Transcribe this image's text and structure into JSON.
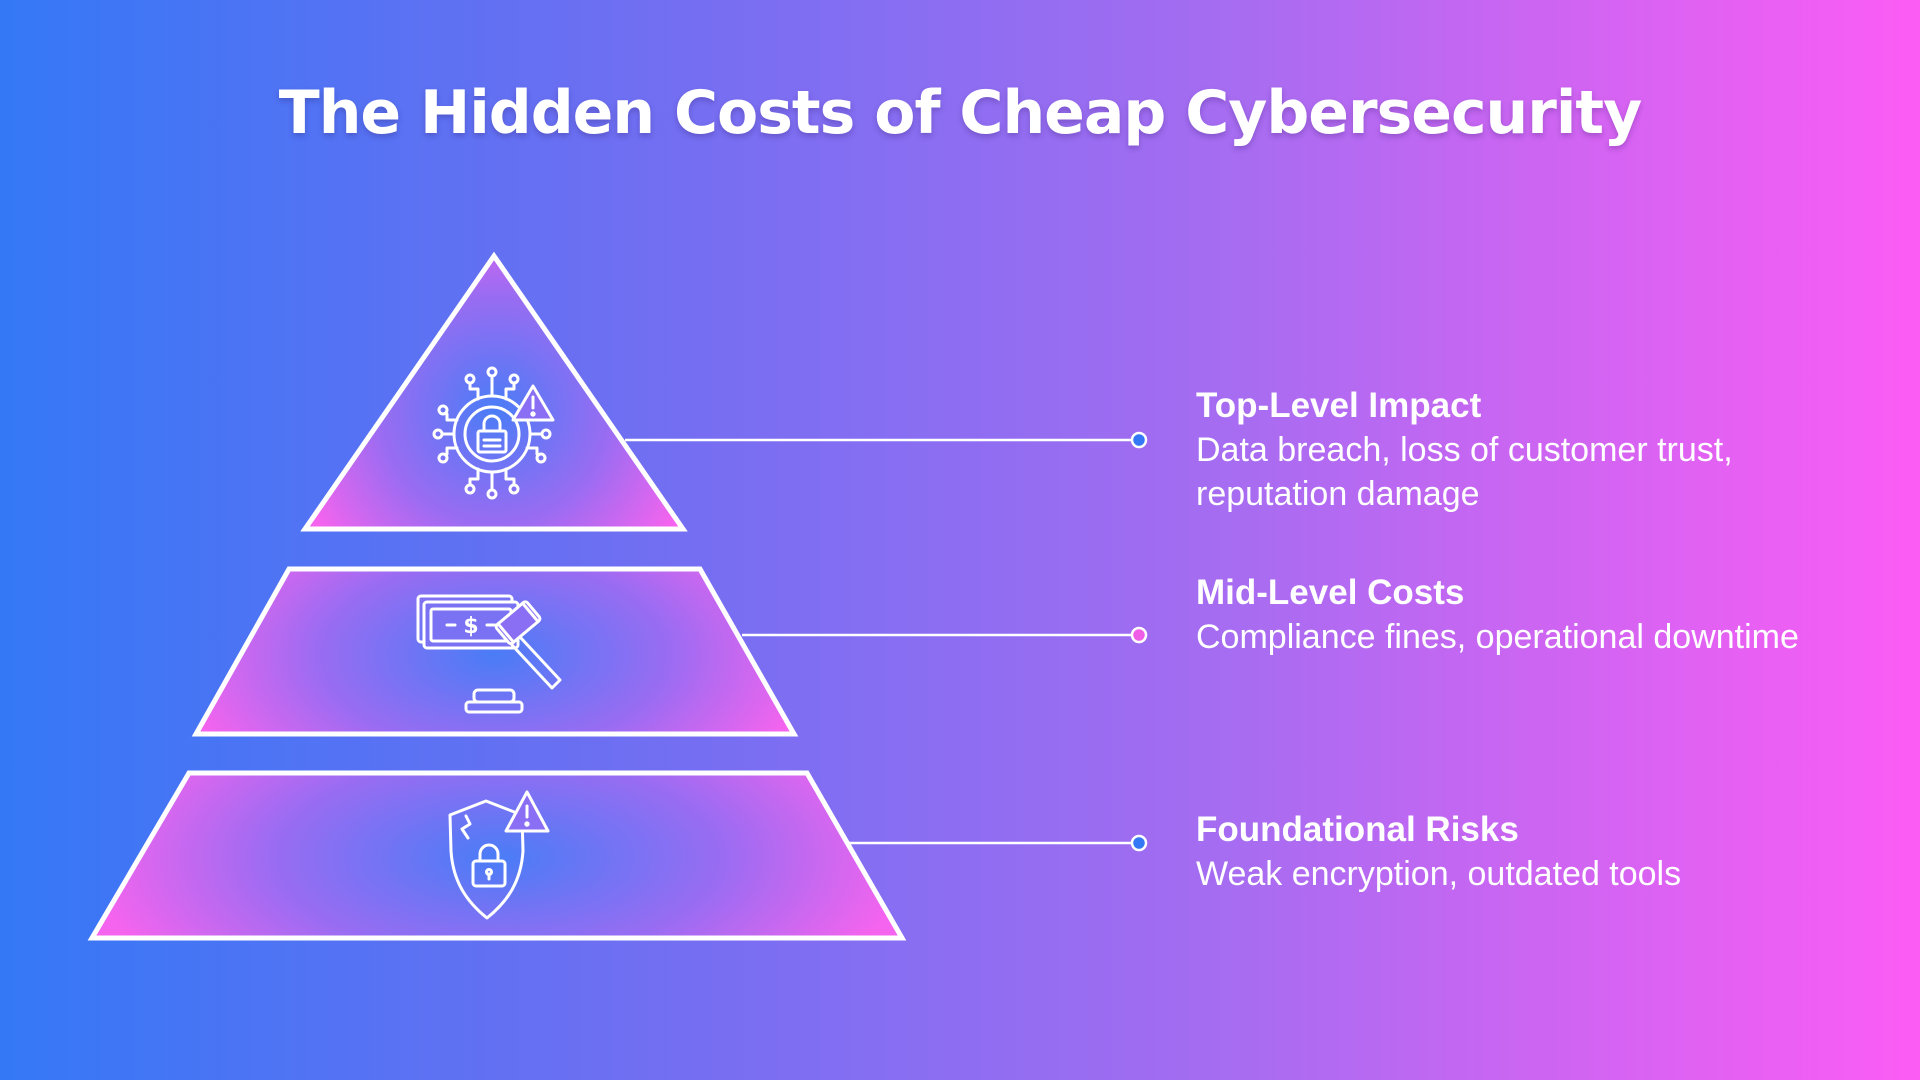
{
  "title": "The Hidden Costs of Cheap Cybersecurity",
  "levels": [
    {
      "title": "Top-Level Impact",
      "description": "Data breach, loss of customer trust, reputation damage",
      "icon": "cyber-lock-alert-icon",
      "dot_color": "#3478f6"
    },
    {
      "title": "Mid-Level Costs",
      "description": "Compliance fines, operational downtime",
      "icon": "money-gavel-icon",
      "dot_color": "#f05ee8"
    },
    {
      "title": "Foundational Risks",
      "description": "Weak encryption, outdated tools",
      "icon": "broken-shield-lock-icon",
      "dot_color": "#3478f6"
    }
  ],
  "colors": {
    "gradient_left": "#3478f6",
    "gradient_right": "#fc5cf4",
    "segment_center": "#4a7cf6",
    "segment_edge": "#f564ee",
    "outline": "#ffffff"
  }
}
